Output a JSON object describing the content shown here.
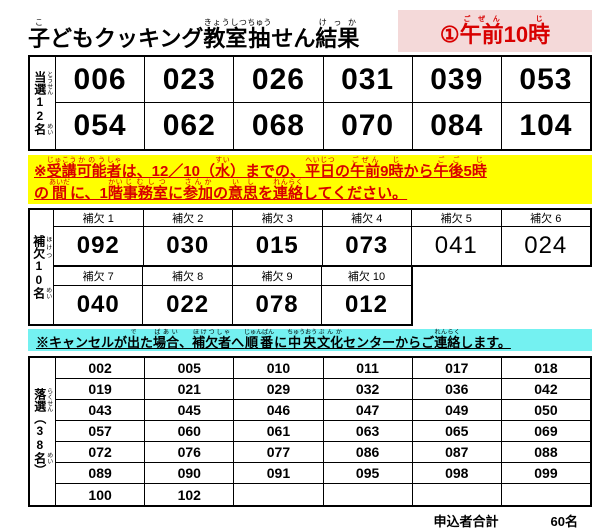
{
  "header": {
    "title_segments": [
      [
        "子",
        "こ"
      ],
      [
        "どもクッキング",
        ""
      ],
      [
        "教室",
        "きょうしつ"
      ],
      [
        "抽",
        "ちゅう"
      ],
      [
        "せん",
        ""
      ],
      [
        "結果",
        "けっか"
      ]
    ],
    "badge_segments": [
      [
        "①",
        ""
      ],
      [
        "午前",
        "ごぜん"
      ],
      [
        "10",
        ""
      ],
      [
        "時",
        "じ"
      ]
    ]
  },
  "winners": {
    "label_segments": [
      [
        "当選",
        "とうせん"
      ],
      [
        "12",
        ""
      ],
      [
        "名",
        "めい"
      ]
    ],
    "rows": [
      [
        "006",
        "023",
        "026",
        "031",
        "039",
        "053"
      ],
      [
        "054",
        "062",
        "068",
        "070",
        "084",
        "104"
      ]
    ]
  },
  "notice_contact": {
    "line1_segments": [
      [
        "※",
        ""
      ],
      [
        "受講",
        "じゅこう"
      ],
      [
        "可能",
        "かのう"
      ],
      [
        "者",
        "しゃ"
      ],
      [
        "は、12／10（",
        ""
      ],
      [
        "水",
        "すい"
      ],
      [
        "）までの、",
        ""
      ],
      [
        "平日",
        "へいじつ"
      ],
      [
        "の",
        ""
      ],
      [
        "午前",
        "ごぜん"
      ],
      [
        "9",
        ""
      ],
      [
        "時",
        "じ"
      ],
      [
        "から",
        ""
      ],
      [
        "午後",
        "ごご"
      ],
      [
        "5",
        ""
      ],
      [
        "時",
        "じ"
      ]
    ],
    "line2_segments": [
      [
        "の",
        ""
      ],
      [
        "間",
        "あいだ"
      ],
      [
        "に、1",
        ""
      ],
      [
        "階",
        "かい"
      ],
      [
        "事務室",
        "じむしつ"
      ],
      [
        "に",
        ""
      ],
      [
        "参加",
        "さんか"
      ],
      [
        "の",
        ""
      ],
      [
        "意思",
        "いし"
      ],
      [
        "を",
        ""
      ],
      [
        "連絡",
        "れんらく"
      ],
      [
        "してください。",
        ""
      ]
    ]
  },
  "alternates": {
    "label_segments": [
      [
        "補欠",
        "ほけつ"
      ],
      [
        "10",
        ""
      ],
      [
        "名",
        "めい"
      ]
    ],
    "group1": {
      "headers": [
        "補欠 1",
        "補欠 2",
        "補欠 3",
        "補欠 4",
        "補欠 5",
        "補欠 6"
      ],
      "values": [
        "092",
        "030",
        "015",
        "073",
        "041",
        "024"
      ]
    },
    "group2": {
      "headers": [
        "補欠 7",
        "補欠 8",
        "補欠 9",
        "補欠 10"
      ],
      "values": [
        "040",
        "022",
        "078",
        "012"
      ]
    }
  },
  "notice_cancel": {
    "segments": [
      [
        "※キャンセルが",
        ""
      ],
      [
        "出",
        "で"
      ],
      [
        "た",
        ""
      ],
      [
        "場合",
        "ばあい"
      ],
      [
        "、",
        ""
      ],
      [
        "補欠者",
        "ほけつしゃ"
      ],
      [
        "へ",
        ""
      ],
      [
        "順番",
        "じゅんばん"
      ],
      [
        "に",
        ""
      ],
      [
        "中央",
        "ちゅうおう"
      ],
      [
        "文化",
        "ぶんか"
      ],
      [
        "センターからご",
        ""
      ],
      [
        "連絡",
        "れんらく"
      ],
      [
        "します。",
        ""
      ]
    ]
  },
  "losers": {
    "label_segments": [
      [
        "落選",
        "らくせん"
      ],
      [
        "（",
        ""
      ],
      [
        "38",
        ""
      ],
      [
        "名",
        "めい"
      ],
      [
        "）",
        ""
      ]
    ],
    "rows": [
      [
        "002",
        "005",
        "010",
        "011",
        "017",
        "018"
      ],
      [
        "019",
        "021",
        "029",
        "032",
        "036",
        "042"
      ],
      [
        "043",
        "045",
        "046",
        "047",
        "049",
        "050"
      ],
      [
        "057",
        "060",
        "061",
        "063",
        "065",
        "069"
      ],
      [
        "072",
        "076",
        "077",
        "086",
        "087",
        "088"
      ],
      [
        "089",
        "090",
        "091",
        "095",
        "098",
        "099"
      ],
      [
        "100",
        "102",
        "",
        "",
        "",
        ""
      ]
    ]
  },
  "footer": {
    "total_label": "申込者合計",
    "total_value": "60名"
  },
  "colors": {
    "badge_bg": "#f4d9d9",
    "badge_text": "#d80000",
    "notice_contact_bg": "#ffff00",
    "notice_contact_text": "#d80000",
    "notice_cancel_bg": "#74f1f1",
    "border": "#000000"
  }
}
